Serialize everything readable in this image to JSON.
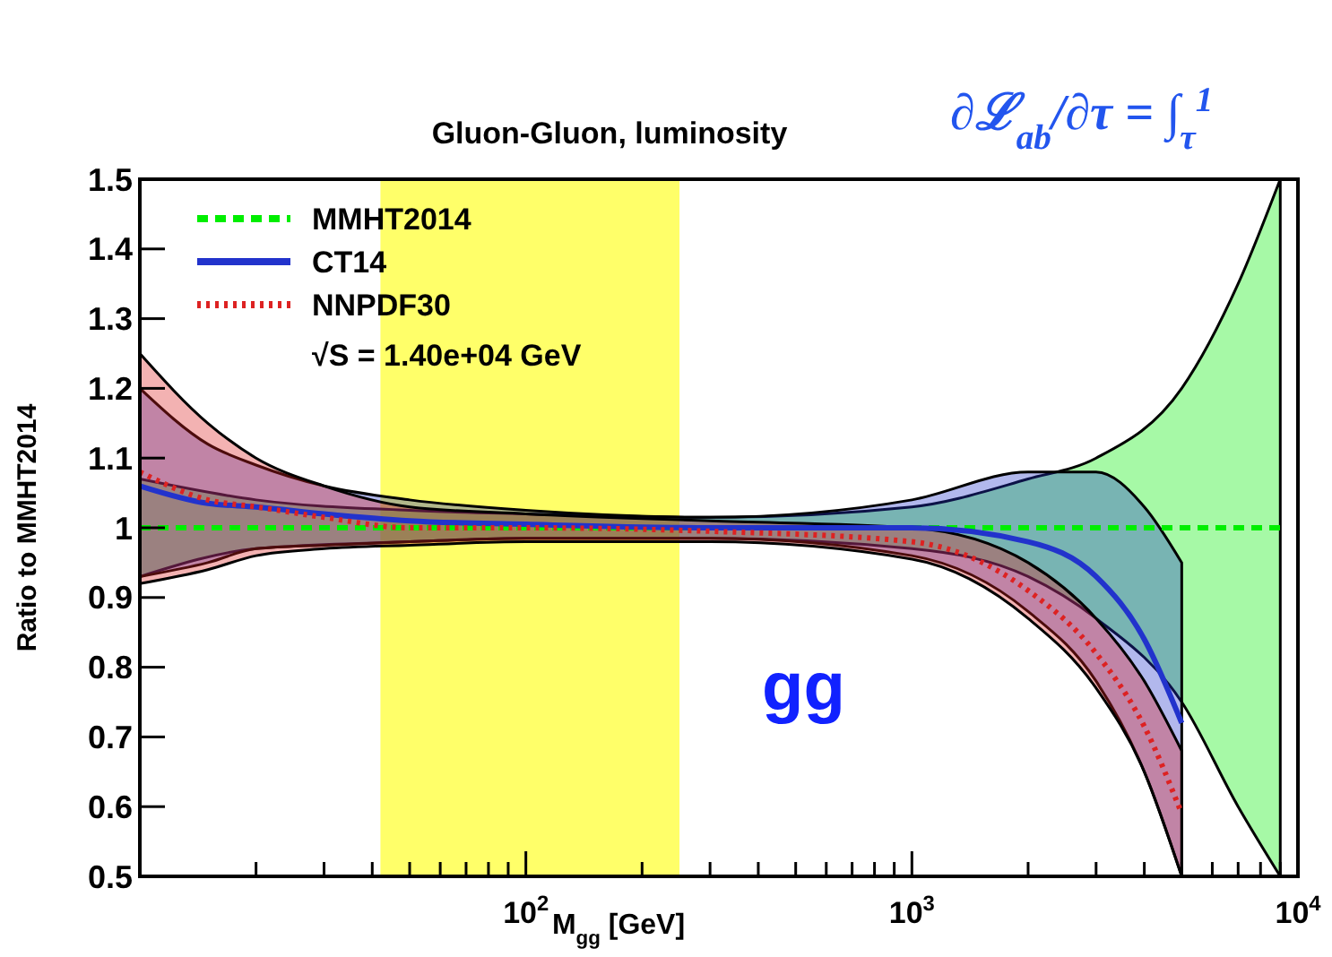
{
  "chart_data": {
    "type": "line",
    "title": "Gluon-Gluon, luminosity",
    "xlabel": "M$_{gg}$ [GeV]",
    "ylabel": "Ratio to MMHT2014",
    "log": "x",
    "xlim": [
      10,
      10000
    ],
    "ylim": [
      0.5,
      1.5
    ],
    "xticks": [
      {
        "value": 20,
        "label": null
      },
      {
        "value": 30,
        "label": null
      },
      {
        "value": 40,
        "label": null
      },
      {
        "value": 50,
        "label": null
      },
      {
        "value": 60,
        "label": null
      },
      {
        "value": 70,
        "label": null
      },
      {
        "value": 80,
        "label": null
      },
      {
        "value": 90,
        "label": null
      },
      {
        "value": 100,
        "label": "10$^{2}$"
      },
      {
        "value": 200,
        "label": null
      },
      {
        "value": 300,
        "label": null
      },
      {
        "value": 400,
        "label": null
      },
      {
        "value": 500,
        "label": null
      },
      {
        "value": 600,
        "label": null
      },
      {
        "value": 700,
        "label": null
      },
      {
        "value": 800,
        "label": null
      },
      {
        "value": 900,
        "label": null
      },
      {
        "value": 1000,
        "label": "10$^{3}$"
      },
      {
        "value": 2000,
        "label": null
      },
      {
        "value": 3000,
        "label": null
      },
      {
        "value": 4000,
        "label": null
      },
      {
        "value": 5000,
        "label": null
      },
      {
        "value": 6000,
        "label": null
      },
      {
        "value": 7000,
        "label": null
      },
      {
        "value": 8000,
        "label": null
      },
      {
        "value": 9000,
        "label": null
      },
      {
        "value": 10000,
        "label": "10$^{4}$"
      }
    ],
    "yticks": [
      0.5,
      0.6,
      0.7,
      0.8,
      0.9,
      1,
      1.1,
      1.2,
      1.3,
      1.4,
      1.5
    ],
    "legend": "top left",
    "grid": false,
    "series": [
      {
        "name": "MMHT2014",
        "color": "#00ee00",
        "line_style": "dashed",
        "x": [
          10,
          20,
          50,
          100,
          300,
          1000,
          2000,
          3000,
          5000,
          7000,
          9000
        ],
        "values": [
          1,
          1,
          1,
          1,
          1,
          1,
          1,
          1,
          1,
          1,
          1
        ],
        "lower": [
          0.93,
          0.97,
          0.98,
          0.985,
          0.985,
          0.97,
          0.93,
          0.87,
          0.75,
          0.6,
          0.5
        ],
        "upper": [
          1.07,
          1.04,
          1.025,
          1.02,
          1.015,
          1.03,
          1.07,
          1.1,
          1.2,
          1.35,
          1.5
        ]
      },
      {
        "name": "CT14",
        "color": "#2233cc",
        "line_style": "solid",
        "x": [
          10,
          15,
          20,
          30,
          50,
          100,
          300,
          1000,
          2000,
          3000,
          4000,
          5000
        ],
        "values": [
          1.06,
          1.035,
          1.03,
          1.02,
          1.01,
          1.005,
          1.0,
          1.0,
          0.98,
          0.93,
          0.84,
          0.72
        ],
        "lower": [
          0.93,
          0.95,
          0.97,
          0.975,
          0.98,
          0.985,
          0.985,
          0.96,
          0.88,
          0.78,
          0.65,
          0.5
        ],
        "upper": [
          1.2,
          1.12,
          1.09,
          1.06,
          1.04,
          1.025,
          1.015,
          1.04,
          1.08,
          1.08,
          1.03,
          0.95
        ]
      },
      {
        "name": "NNPDF30",
        "color": "#dd2222",
        "line_style": "dotted",
        "x": [
          10,
          15,
          20,
          30,
          50,
          100,
          300,
          1000,
          2000,
          3000,
          4000,
          5000
        ],
        "values": [
          1.08,
          1.04,
          1.03,
          1.015,
          1.0,
          1.0,
          0.995,
          0.98,
          0.91,
          0.82,
          0.715,
          0.59
        ],
        "lower": [
          0.92,
          0.94,
          0.96,
          0.97,
          0.975,
          0.98,
          0.98,
          0.955,
          0.87,
          0.77,
          0.65,
          0.5
        ],
        "upper": [
          1.25,
          1.15,
          1.1,
          1.06,
          1.03,
          1.02,
          1.01,
          1.0,
          0.95,
          0.87,
          0.78,
          0.68
        ]
      }
    ],
    "bands": [
      {
        "axis": "x",
        "from": 42,
        "to": 250,
        "color": "#ffff44"
      }
    ],
    "annotations": [
      "∂ℒ$_{ab}$/∂τ = ∫$_{τ}$$^{1}$",
      "√S = 1.40e+04 GeV",
      "gg"
    ]
  }
}
